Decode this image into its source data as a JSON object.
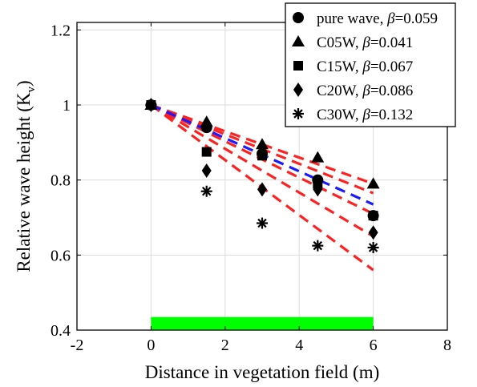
{
  "chart_data": {
    "type": "scatter",
    "title": "",
    "xlabel": "Distance in vegetation field (m)",
    "ylabel": "Relative wave height (K",
    "ylabel_subscript": "v",
    "ylabel_close": ")",
    "xlim": [
      -2,
      8
    ],
    "ylim": [
      0.4,
      1.22
    ],
    "xticks": [
      -2,
      0,
      2,
      4,
      6,
      8
    ],
    "yticks": [
      0.4,
      0.6,
      0.8,
      1,
      1.2
    ],
    "xtick_labels": [
      "-2",
      "0",
      "2",
      "4",
      "6",
      "8"
    ],
    "ytick_labels": [
      "0.4",
      "0.6",
      "0.8",
      "1",
      "1.2"
    ],
    "grid": true,
    "legend_position": "top-right",
    "series": [
      {
        "name": "pure wave",
        "beta_label": "β",
        "beta": "=0.059",
        "marker": "circle",
        "x": [
          0,
          1.5,
          3,
          4.5,
          6
        ],
        "y": [
          1.0,
          0.94,
          0.87,
          0.8,
          0.705
        ],
        "fit": {
          "x": [
            0,
            6
          ],
          "y": [
            1.0,
            0.735
          ],
          "color": "#1a1aff"
        }
      },
      {
        "name": "C05W",
        "beta_label": "β",
        "beta": "=0.041",
        "marker": "triangle",
        "x": [
          0,
          1.5,
          3,
          4.5,
          6
        ],
        "y": [
          1.0,
          0.955,
          0.895,
          0.86,
          0.79
        ],
        "fit": {
          "x": [
            0,
            6
          ],
          "y": [
            1.0,
            0.79
          ],
          "color": "#ff2020"
        }
      },
      {
        "name": "C15W",
        "beta_label": "β",
        "beta": "=0.067",
        "marker": "square",
        "x": [
          0,
          1.5,
          3,
          4.5,
          6
        ],
        "y": [
          1.0,
          0.875,
          0.865,
          0.79,
          0.705
        ],
        "fit": {
          "x": [
            0,
            6
          ],
          "y": [
            1.0,
            0.71
          ],
          "color": "#ff2020"
        }
      },
      {
        "name": "C20W",
        "beta_label": "β",
        "beta": "=0.086",
        "marker": "diamond",
        "x": [
          0,
          1.5,
          3,
          4.5,
          6
        ],
        "y": [
          1.0,
          0.825,
          0.775,
          0.775,
          0.66
        ],
        "fit": {
          "x": [
            0,
            6
          ],
          "y": [
            1.0,
            0.65
          ],
          "color": "#ff2020"
        }
      },
      {
        "name": "C30W",
        "beta_label": "β",
        "beta": "=0.132",
        "marker": "asterisk",
        "x": [
          0,
          1.5,
          3,
          4.5,
          6
        ],
        "y": [
          1.0,
          0.77,
          0.685,
          0.625,
          0.62
        ],
        "fit": {
          "x": [
            0,
            6
          ],
          "y": [
            1.0,
            0.56
          ],
          "color": "#ff2020"
        }
      }
    ],
    "extra_fit_lines": [
      {
        "x": [
          0,
          6
        ],
        "y": [
          1.0,
          0.765
        ],
        "color": "#ff2020"
      }
    ],
    "vegetation_bar": {
      "x": [
        0,
        6
      ],
      "y": [
        0.4,
        0.435
      ],
      "color": "#00ff00"
    }
  }
}
